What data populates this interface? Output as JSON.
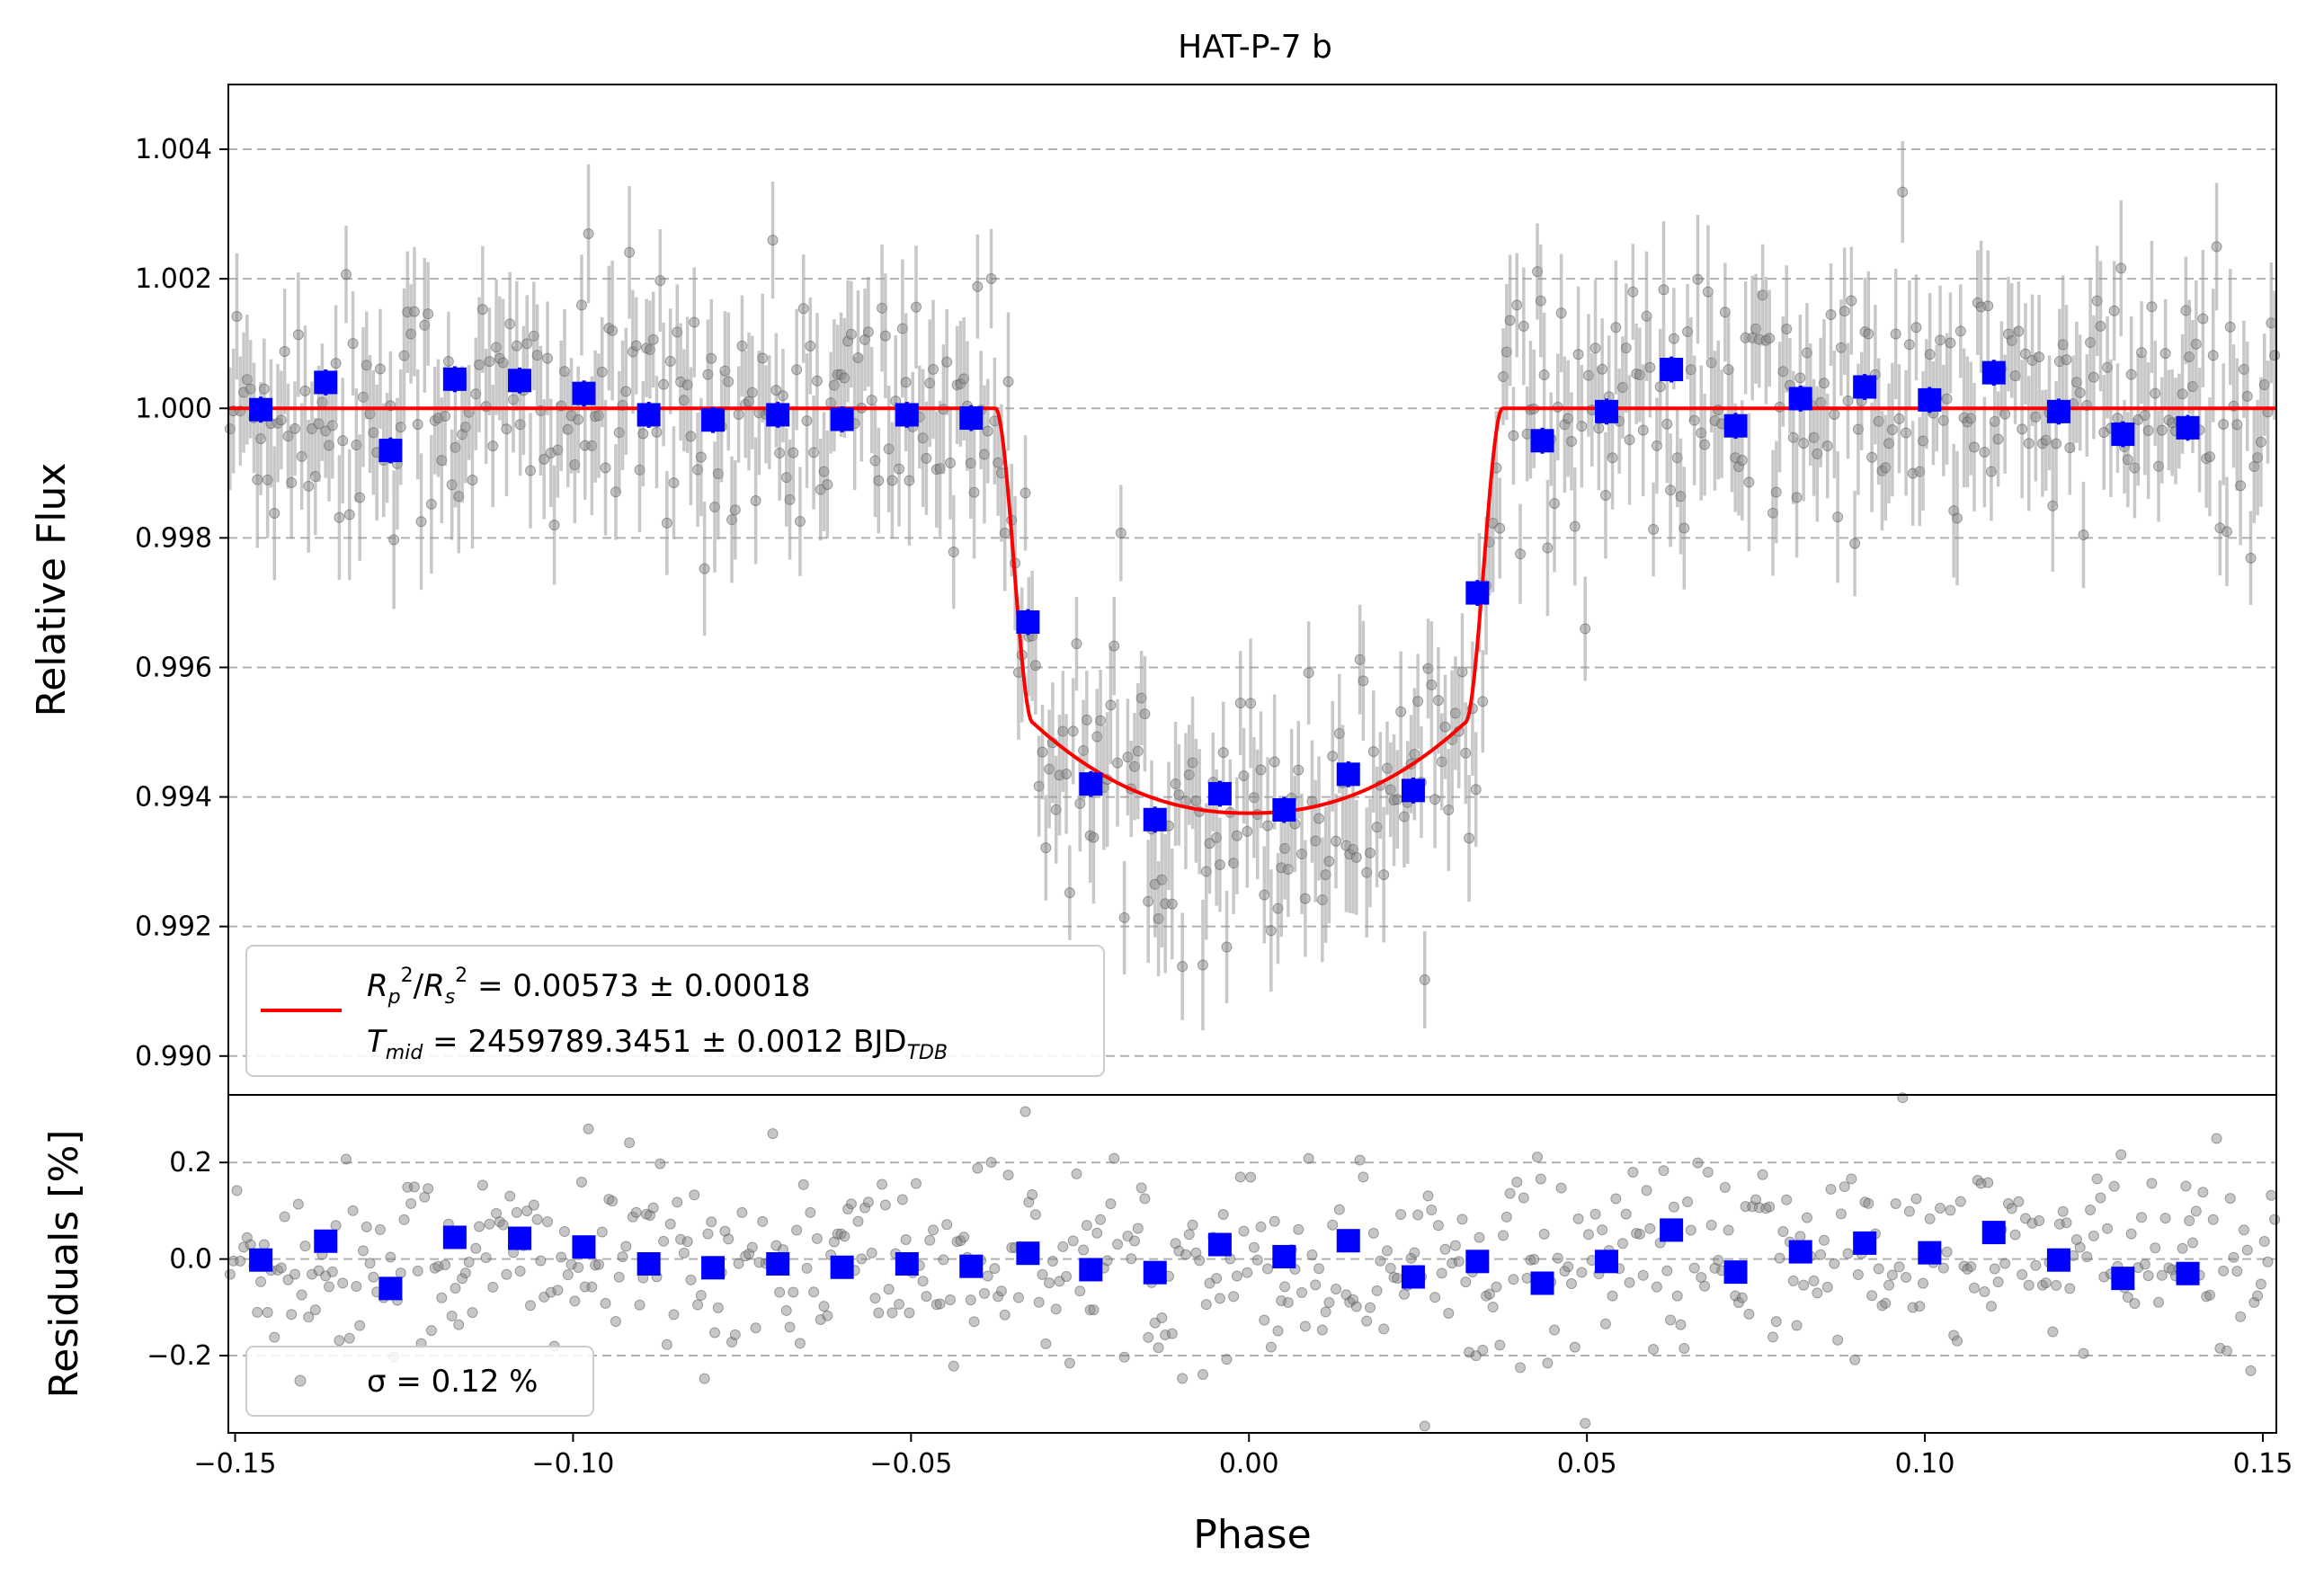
{
  "chart_data": [
    {
      "panel": "flux",
      "type": "scatter",
      "title": "HAT-P-7 b",
      "xlabel": "",
      "ylabel": "Relative Flux",
      "xlim": [
        -0.151,
        0.152
      ],
      "ylim": [
        0.9894,
        1.005
      ],
      "yticks": [
        0.99,
        0.992,
        0.994,
        0.996,
        0.998,
        1.0,
        1.002,
        1.004
      ],
      "ytick_labels": [
        "0.990",
        "0.992",
        "0.994",
        "0.996",
        "0.998",
        "1.000",
        "1.002",
        "1.004"
      ],
      "grid": "horizontal dashed",
      "legend": {
        "placement": "lower-left",
        "entries": [
          {
            "line1_base": "R",
            "line1": "p²/Rs² = 0.00573 ± 0.00018",
            "line2": "T",
            "line2_rest": "mid = 2459789.3451 ± 0.0012 BJD",
            "line2_sub": "TDB"
          }
        ]
      },
      "raw_points": {
        "color": "#808080",
        "typical_error": 0.0009,
        "note_count_approx": 600
      },
      "binned": {
        "color": "#0000ff",
        "x": [
          -0.1462,
          -0.1366,
          -0.127,
          -0.1175,
          -0.1079,
          -0.0984,
          -0.0888,
          -0.0793,
          -0.0697,
          -0.0602,
          -0.0506,
          -0.0411,
          -0.0327,
          -0.0234,
          -0.0139,
          -0.0043,
          0.0052,
          0.0147,
          0.0243,
          0.0338,
          0.0434,
          0.0529,
          0.0625,
          0.072,
          0.0816,
          0.0911,
          0.1007,
          0.1102,
          0.1198,
          0.1293,
          0.1389
        ],
        "y": [
          0.99998,
          1.0004,
          0.99935,
          1.00045,
          1.00043,
          1.00023,
          0.9999,
          0.99982,
          0.9999,
          0.99983,
          0.9999,
          0.99985,
          0.9967,
          0.9942,
          0.99365,
          0.99405,
          0.9938,
          0.99435,
          0.9941,
          0.99715,
          0.9995,
          0.99995,
          1.0006,
          0.99973,
          1.00015,
          1.00033,
          1.00013,
          1.00055,
          0.99995,
          0.9996,
          0.9997
        ],
        "yerr": 0.0002
      },
      "model": {
        "color": "#ff0000",
        "rp2_rs2": 0.00573,
        "t_mid": "2459789.3451",
        "out_of_transit": 1.0,
        "min_flux": 0.99375,
        "contact_phases": [
          -0.0375,
          -0.032,
          0.032,
          0.0375
        ]
      }
    },
    {
      "panel": "residuals",
      "type": "scatter",
      "xlabel": "Phase",
      "ylabel": "Residuals [%]",
      "xlim": [
        -0.151,
        0.152
      ],
      "ylim": [
        -0.36,
        0.34
      ],
      "xticks": [
        -0.15,
        -0.1,
        -0.05,
        0.0,
        0.05,
        0.1,
        0.15
      ],
      "xtick_labels": [
        "−0.15",
        "−0.10",
        "−0.05",
        "0.00",
        "0.05",
        "0.10",
        "0.15"
      ],
      "yticks": [
        -0.2,
        0.0,
        0.2
      ],
      "ytick_labels": [
        "−0.2",
        "0.0",
        "0.2"
      ],
      "grid": "horizontal dashed",
      "legend": {
        "placement": "lower-left",
        "entries": [
          {
            "label": "σ = 0.12 %"
          }
        ]
      },
      "raw_points": {
        "color": "#808080",
        "sigma": 0.12
      },
      "binned": {
        "color": "#0000ff",
        "x": [
          -0.1462,
          -0.1366,
          -0.127,
          -0.1175,
          -0.1079,
          -0.0984,
          -0.0888,
          -0.0793,
          -0.0697,
          -0.0602,
          -0.0506,
          -0.0411,
          -0.0327,
          -0.0234,
          -0.0139,
          -0.0043,
          0.0052,
          0.0147,
          0.0243,
          0.0338,
          0.0434,
          0.0529,
          0.0625,
          0.072,
          0.0816,
          0.0911,
          0.1007,
          0.1102,
          0.1198,
          0.1293,
          0.1389
        ],
        "y": [
          -0.002,
          0.037,
          -0.061,
          0.045,
          0.043,
          0.025,
          -0.01,
          -0.018,
          -0.01,
          -0.017,
          -0.01,
          -0.015,
          0.012,
          -0.022,
          -0.028,
          0.03,
          0.005,
          0.038,
          -0.037,
          -0.005,
          -0.05,
          -0.005,
          0.06,
          -0.027,
          0.015,
          0.033,
          0.013,
          0.055,
          -0.002,
          -0.04,
          -0.03
        ]
      }
    }
  ]
}
